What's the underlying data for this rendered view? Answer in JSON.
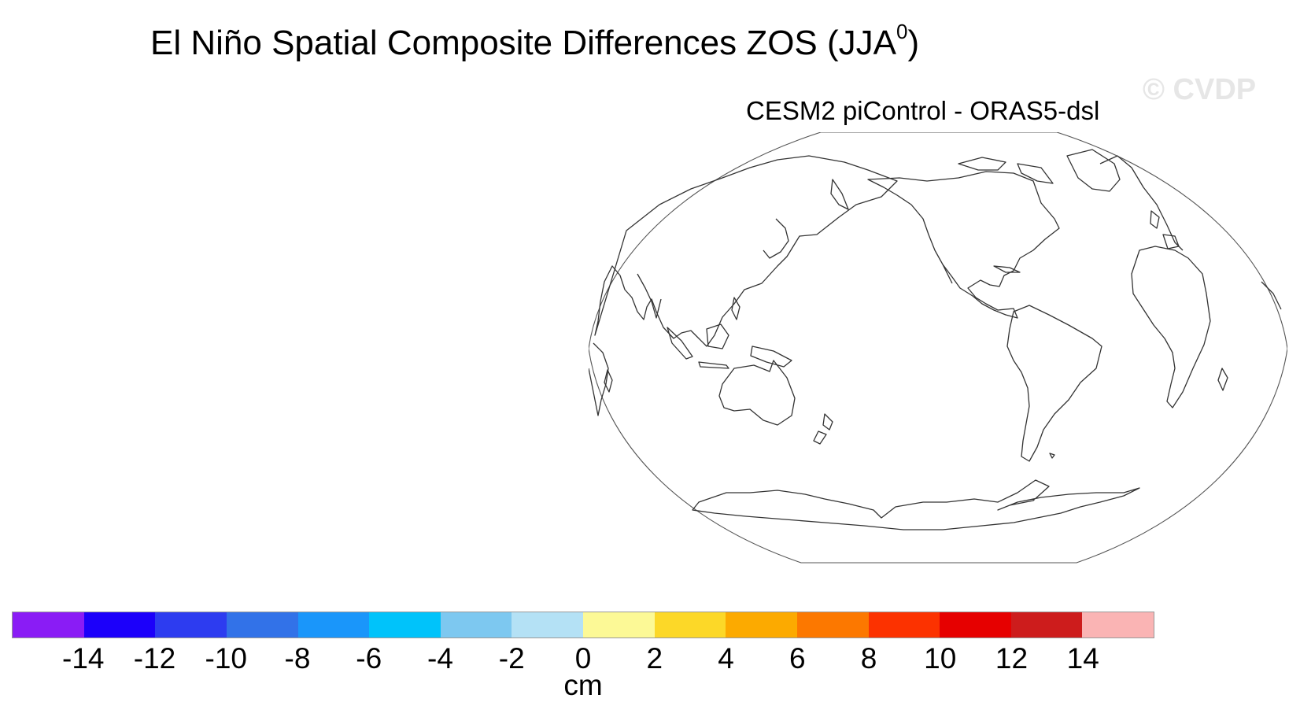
{
  "title": {
    "main": "El Niño Spatial Composite Differences ZOS (JJA",
    "sup": "0",
    "close": ")"
  },
  "watermark": "© CVDP",
  "panel": {
    "subtitle": "CESM2 piControl - ORAS5-dsl"
  },
  "map": {
    "projection": "robinson",
    "center_longitude": 180,
    "coastline_color": "#333333"
  },
  "colorbar": {
    "units": "cm",
    "tick_labels": [
      "-14",
      "-12",
      "-10",
      "-8",
      "-6",
      "-4",
      "-2",
      "0",
      "2",
      "4",
      "6",
      "8",
      "10",
      "12",
      "14"
    ],
    "colors": [
      "#8a1cf5",
      "#1c00fa",
      "#2d3cf0",
      "#3272e8",
      "#1a96fa",
      "#00c3fa",
      "#7dc8f0",
      "#b4e1f5",
      "#fcf996",
      "#fcd828",
      "#fcaa00",
      "#fc7800",
      "#fc3200",
      "#e60000",
      "#cd1c1c",
      "#fab4b4"
    ]
  }
}
